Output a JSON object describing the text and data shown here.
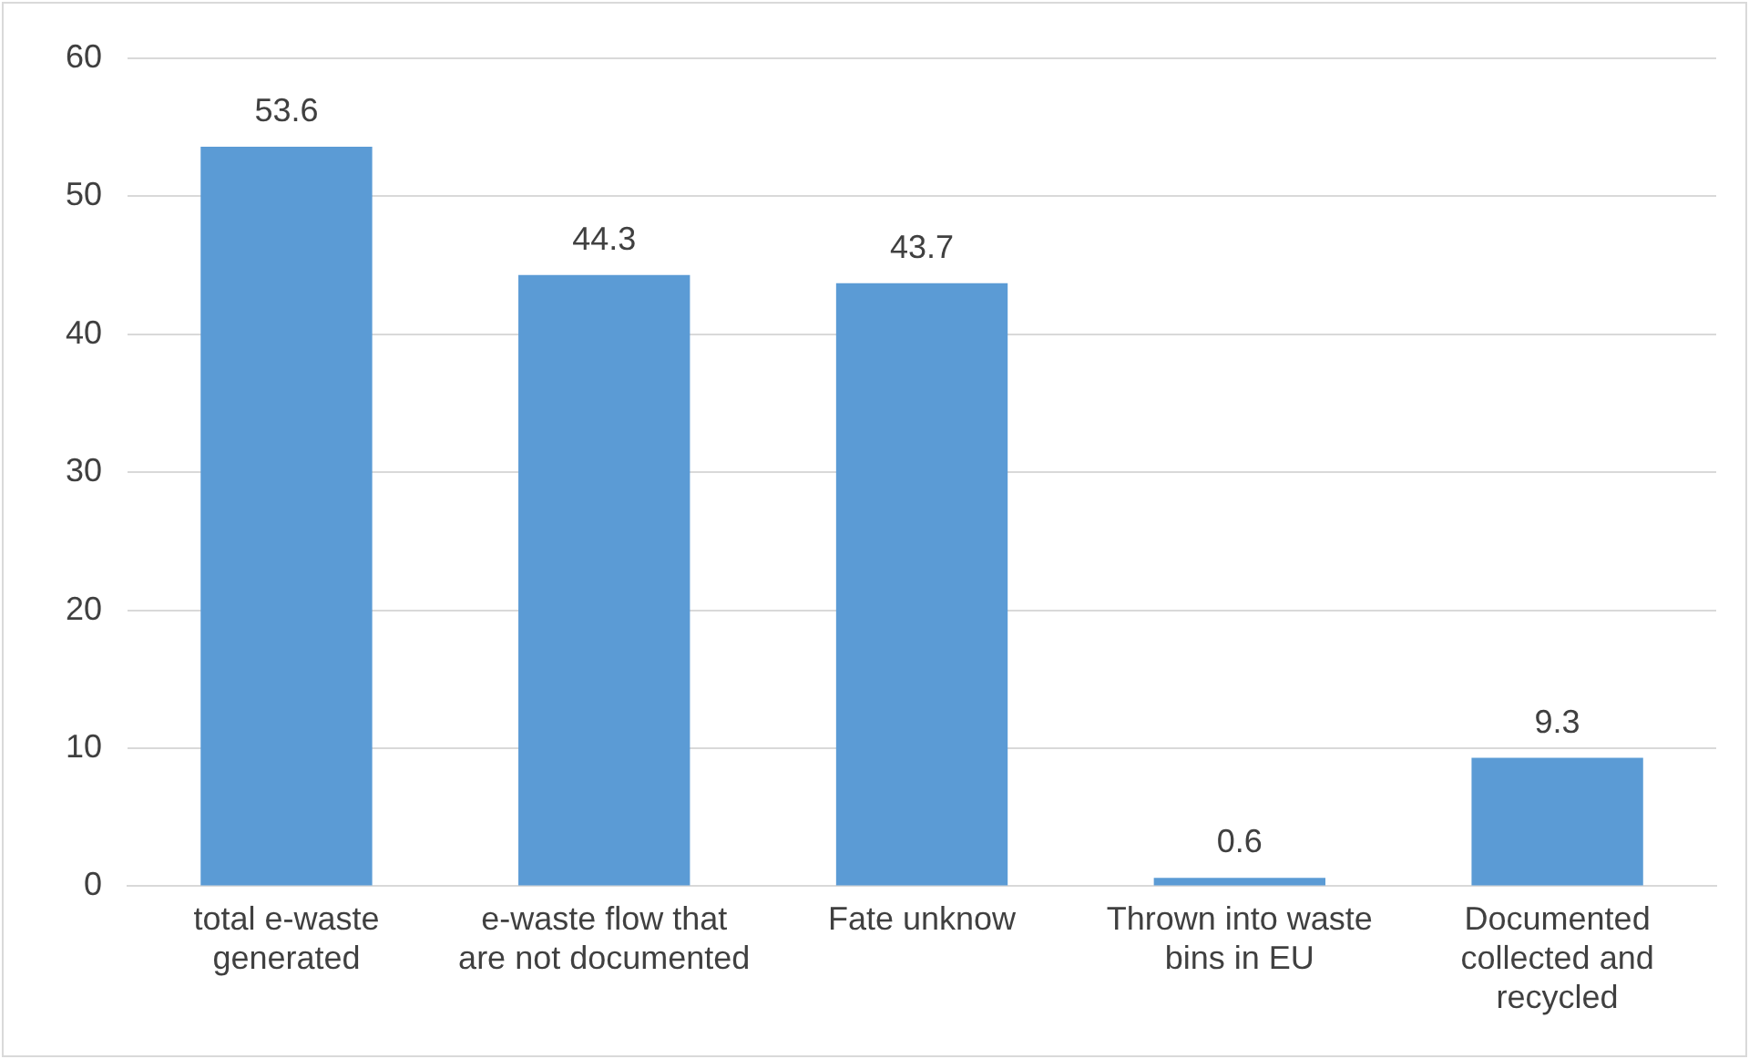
{
  "chart_data": {
    "type": "bar",
    "categories": [
      "total e-waste generated",
      "e-waste flow that are not documented",
      "Fate unknow",
      "Thrown into waste bins in EU",
      "Documented collected and recycled"
    ],
    "values": [
      53.6,
      44.3,
      43.7,
      0.6,
      9.3
    ],
    "color": "#5b9bd5",
    "ylim": [
      0,
      60
    ],
    "yticks": [
      0,
      10,
      20,
      30,
      40,
      50,
      60
    ],
    "grid": "y",
    "data_labels": true
  }
}
